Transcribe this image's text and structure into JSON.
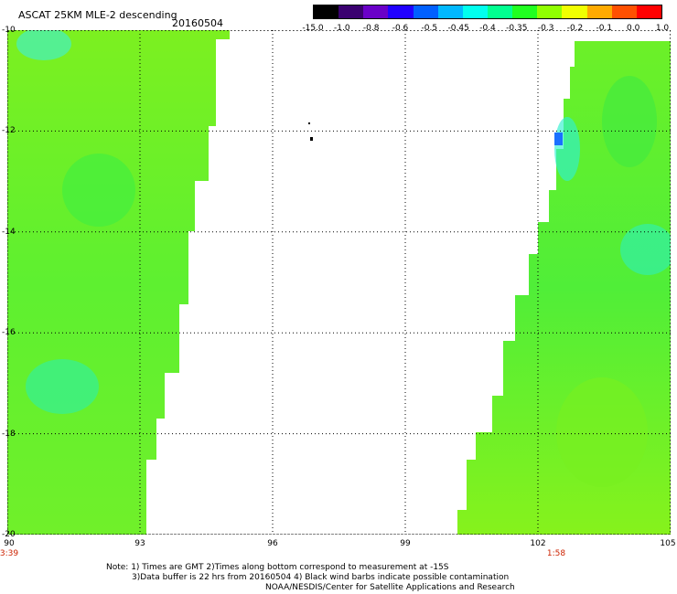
{
  "header": {
    "title": "ASCAT 25KM MLE-2 descending",
    "date": "20160504"
  },
  "colorbar": {
    "labels": [
      "-15.0",
      "-1.0",
      "-0.8",
      "-0.6",
      "-0.5",
      "-0.45",
      "-0.4",
      "-0.35",
      "-0.3",
      "-0.2",
      "-0.1",
      "0.0",
      "1.0"
    ],
    "colors": [
      "#000000",
      "#3a0070",
      "#6a00c8",
      "#2000ff",
      "#0060ff",
      "#00b8ff",
      "#00ffee",
      "#00ff90",
      "#20ff20",
      "#90ff00",
      "#f0ff00",
      "#ffaa00",
      "#ff5000",
      "#ff0000"
    ]
  },
  "map": {
    "lat_labels": [
      "-10",
      "-12",
      "-14",
      "-16",
      "-18",
      "-20"
    ],
    "lon_labels": [
      "90",
      "93",
      "96",
      "99",
      "102",
      "105"
    ],
    "lat_range": [
      -20,
      -10
    ],
    "lon_range": [
      90,
      105
    ],
    "grid": true
  },
  "times": {
    "left": "3:39",
    "right": "1:58"
  },
  "notes": {
    "line1": "Note: 1) Times are GMT 2)Times along bottom correspond to measurement at -15S",
    "line2": "3)Data buffer is 22 hrs from 20160504 4) Black wind barbs indicate possible contamination",
    "line3": "NOAA/NESDIS/Center for Satellite Applications and Research"
  }
}
